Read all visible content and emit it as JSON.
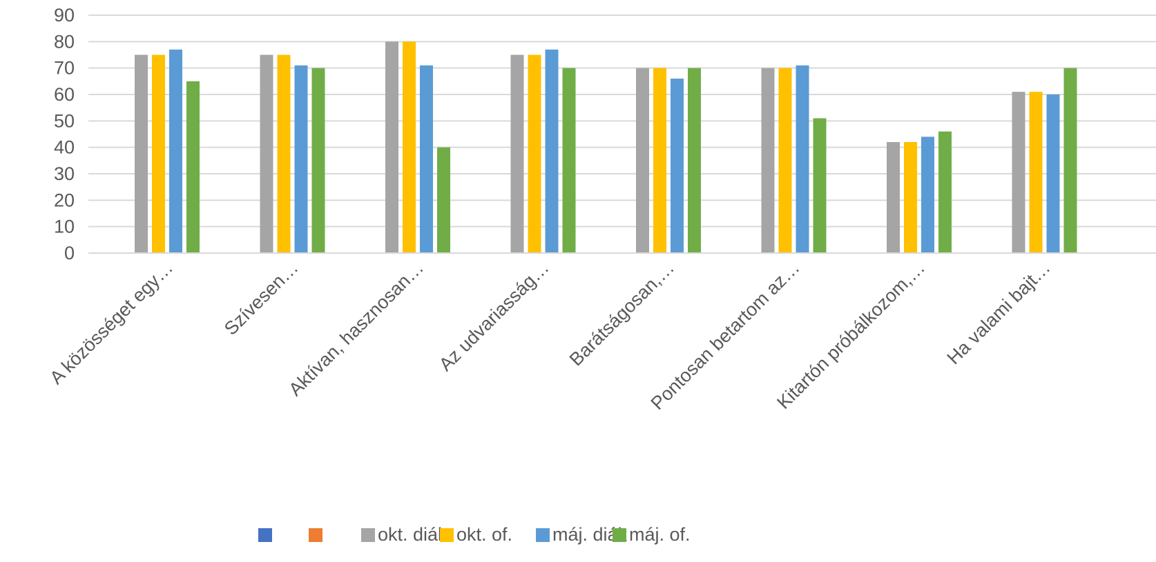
{
  "chart_data": {
    "type": "bar",
    "title": "",
    "xlabel": "",
    "ylabel": "",
    "ylim": [
      0,
      90
    ],
    "yticks": [
      0,
      10,
      20,
      30,
      40,
      50,
      60,
      70,
      80,
      90
    ],
    "grid": true,
    "legend_position": "bottom",
    "categories": [
      "A közösséget egy…",
      "Szívesen…",
      "Aktívan, hasznosan…",
      "Az udvariasság…",
      "Barátságosan,…",
      "Pontosan betartom az…",
      "Kitartón próbálkozom,…",
      "Ha valami bajt…"
    ],
    "legend_only": [
      {
        "name": "",
        "color": "#4472c4"
      },
      {
        "name": "",
        "color": "#ed7d31"
      }
    ],
    "series": [
      {
        "name": "okt. diák",
        "color": "#a5a5a5",
        "values": [
          75,
          75,
          80,
          75,
          70,
          70,
          42,
          61
        ]
      },
      {
        "name": "okt. of.",
        "color": "#ffc000",
        "values": [
          75,
          75,
          80,
          75,
          70,
          70,
          42,
          61
        ]
      },
      {
        "name": "máj. diák",
        "color": "#5b9bd5",
        "values": [
          77,
          71,
          71,
          77,
          66,
          71,
          44,
          60
        ]
      },
      {
        "name": "máj. of.",
        "color": "#70ad47",
        "values": [
          65,
          70,
          40,
          70,
          70,
          51,
          46,
          70
        ]
      }
    ]
  }
}
